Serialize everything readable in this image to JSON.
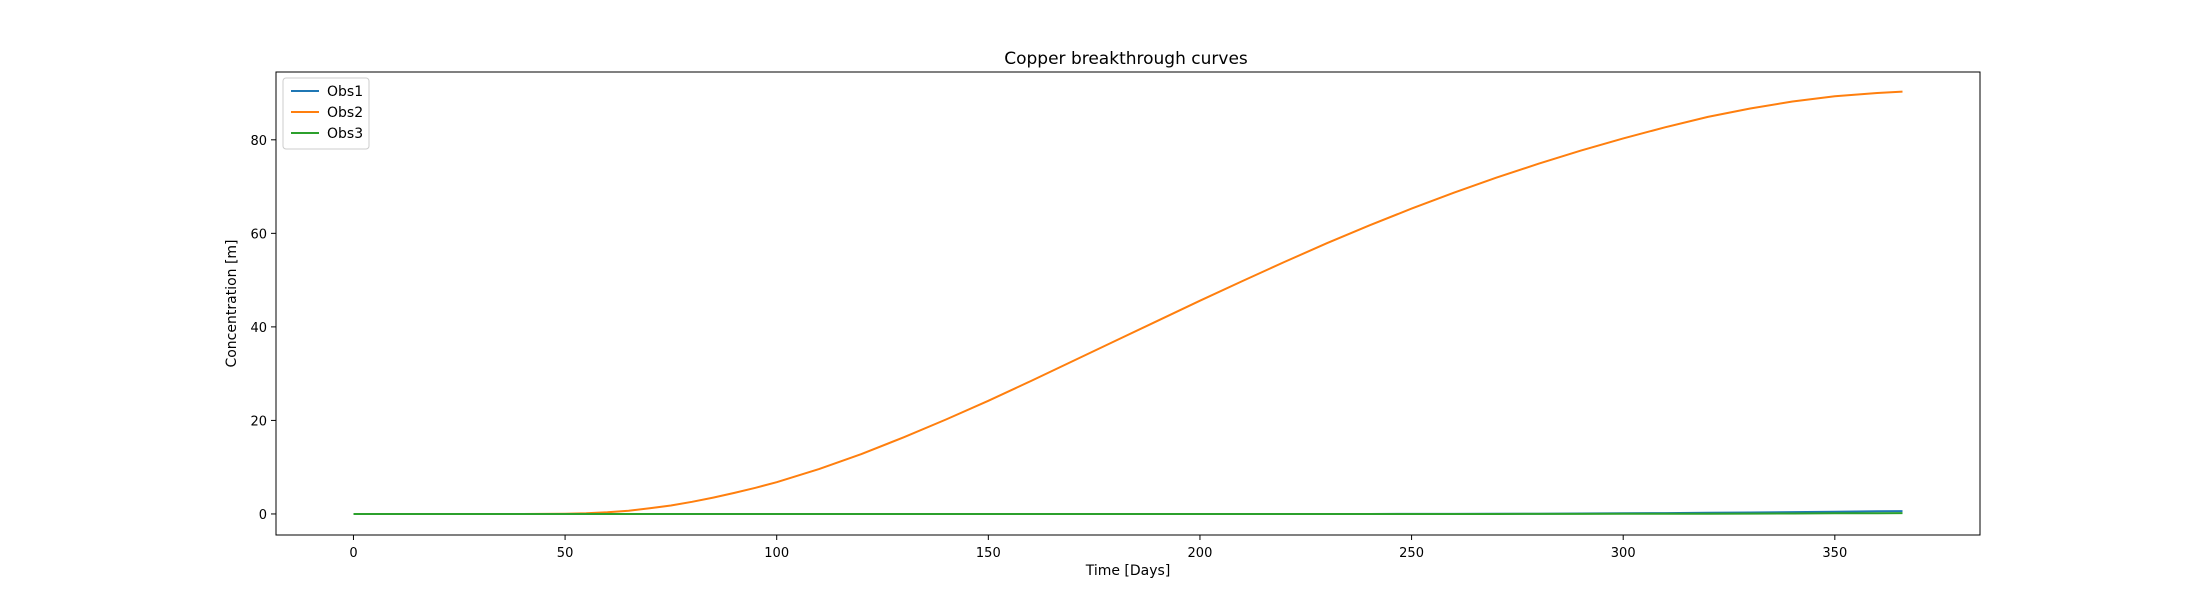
{
  "chart_data": {
    "type": "line",
    "title": "Copper breakthrough curves",
    "xlabel": "Time [Days]",
    "ylabel": "Concentration [m]",
    "xlim": [
      -18.3,
      384.3
    ],
    "ylim": [
      -4.5,
      94.5
    ],
    "xticks": [
      0,
      50,
      100,
      150,
      200,
      250,
      300,
      350
    ],
    "yticks": [
      0,
      20,
      40,
      60,
      80
    ],
    "grid": false,
    "legend_position": "top-left",
    "x": [
      0,
      20,
      40,
      50,
      55,
      60,
      65,
      70,
      75,
      80,
      85,
      90,
      95,
      100,
      110,
      120,
      130,
      140,
      150,
      160,
      170,
      180,
      190,
      200,
      210,
      220,
      230,
      240,
      250,
      260,
      270,
      280,
      290,
      300,
      310,
      320,
      330,
      340,
      350,
      360,
      366
    ],
    "series": [
      {
        "name": "Obs1",
        "color": "#1f77b4",
        "values": [
          0,
          0,
          0,
          0,
          0,
          0,
          0,
          0,
          0,
          0,
          0,
          0,
          0,
          0,
          0,
          0,
          0,
          0,
          0,
          0,
          0,
          0,
          0,
          0,
          0,
          0,
          0,
          0,
          0.01,
          0.02,
          0.04,
          0.06,
          0.09,
          0.13,
          0.18,
          0.24,
          0.31,
          0.39,
          0.47,
          0.56,
          0.62
        ]
      },
      {
        "name": "Obs2",
        "color": "#ff7f0e",
        "values": [
          0,
          0,
          0,
          0.05,
          0.15,
          0.35,
          0.7,
          1.2,
          1.8,
          2.6,
          3.5,
          4.5,
          5.6,
          6.8,
          9.6,
          12.8,
          16.4,
          20.2,
          24.2,
          28.4,
          32.7,
          37.0,
          41.3,
          45.6,
          49.8,
          53.9,
          57.9,
          61.7,
          65.3,
          68.7,
          71.9,
          74.9,
          77.7,
          80.3,
          82.7,
          84.9,
          86.7,
          88.2,
          89.3,
          90.0,
          90.3
        ]
      },
      {
        "name": "Obs3",
        "color": "#2ca02c",
        "values": [
          0,
          0,
          0,
          0,
          0,
          0,
          0,
          0,
          0,
          0,
          0,
          0,
          0,
          0,
          0,
          0,
          0,
          0,
          0,
          0,
          0,
          0,
          0,
          0,
          0,
          0,
          0,
          0,
          0,
          0,
          0,
          0.01,
          0.02,
          0.03,
          0.04,
          0.06,
          0.08,
          0.1,
          0.13,
          0.16,
          0.18
        ]
      }
    ]
  }
}
